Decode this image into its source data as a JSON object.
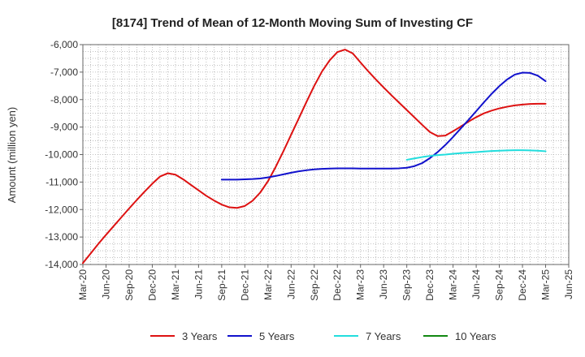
{
  "chart_data": {
    "type": "line",
    "title": "[8174]  Trend of Mean of 12-Month Moving Sum of Investing CF",
    "xlabel": "",
    "ylabel": "Amount (million yen)",
    "ylim": [
      -14000,
      -6000
    ],
    "yticks": [
      -6000,
      -7000,
      -8000,
      -9000,
      -10000,
      -11000,
      -12000,
      -13000,
      -14000
    ],
    "ytick_labels": [
      "-6,000",
      "-7,000",
      "-8,000",
      "-9,000",
      "-10,000",
      "-11,000",
      "-12,000",
      "-13,000",
      "-14,000"
    ],
    "xticks": [
      "Mar-20",
      "Jun-20",
      "Sep-20",
      "Dec-20",
      "Mar-21",
      "Jun-21",
      "Sep-21",
      "Dec-21",
      "Mar-22",
      "Jun-22",
      "Sep-22",
      "Dec-22",
      "Mar-23",
      "Jun-23",
      "Sep-23",
      "Dec-23",
      "Mar-24",
      "Jun-24",
      "Sep-24",
      "Dec-24",
      "Mar-25",
      "Jun-25"
    ],
    "grid": true,
    "legend_position": "bottom",
    "series": [
      {
        "name": "3 Years",
        "color": "#dd1111",
        "points": [
          [
            "2020-03",
            -13950
          ],
          [
            "2020-04",
            -13600
          ],
          [
            "2020-05",
            -13250
          ],
          [
            "2020-06",
            -12920
          ],
          [
            "2020-07",
            -12600
          ],
          [
            "2020-08",
            -12280
          ],
          [
            "2020-09",
            -11960
          ],
          [
            "2020-10",
            -11650
          ],
          [
            "2020-11",
            -11350
          ],
          [
            "2020-12",
            -11060
          ],
          [
            "2021-01",
            -10800
          ],
          [
            "2021-02",
            -10680
          ],
          [
            "2021-03",
            -10730
          ],
          [
            "2021-04",
            -10900
          ],
          [
            "2021-05",
            -11100
          ],
          [
            "2021-06",
            -11300
          ],
          [
            "2021-07",
            -11500
          ],
          [
            "2021-08",
            -11670
          ],
          [
            "2021-09",
            -11820
          ],
          [
            "2021-10",
            -11920
          ],
          [
            "2021-11",
            -11940
          ],
          [
            "2021-12",
            -11870
          ],
          [
            "2022-01",
            -11680
          ],
          [
            "2022-02",
            -11380
          ],
          [
            "2022-03",
            -10970
          ],
          [
            "2022-04",
            -10450
          ],
          [
            "2022-05",
            -9880
          ],
          [
            "2022-06",
            -9280
          ],
          [
            "2022-07",
            -8680
          ],
          [
            "2022-08",
            -8080
          ],
          [
            "2022-09",
            -7500
          ],
          [
            "2022-10",
            -6980
          ],
          [
            "2022-11",
            -6570
          ],
          [
            "2022-12",
            -6270
          ],
          [
            "2023-01",
            -6180
          ],
          [
            "2023-02",
            -6320
          ],
          [
            "2023-03",
            -6650
          ],
          [
            "2023-04",
            -6970
          ],
          [
            "2023-05",
            -7270
          ],
          [
            "2023-06",
            -7560
          ],
          [
            "2023-07",
            -7840
          ],
          [
            "2023-08",
            -8110
          ],
          [
            "2023-09",
            -8380
          ],
          [
            "2023-10",
            -8650
          ],
          [
            "2023-11",
            -8920
          ],
          [
            "2023-12",
            -9180
          ],
          [
            "2024-01",
            -9330
          ],
          [
            "2024-02",
            -9310
          ],
          [
            "2024-03",
            -9150
          ],
          [
            "2024-04",
            -8980
          ],
          [
            "2024-05",
            -8800
          ],
          [
            "2024-06",
            -8640
          ],
          [
            "2024-07",
            -8500
          ],
          [
            "2024-08",
            -8400
          ],
          [
            "2024-09",
            -8320
          ],
          [
            "2024-10",
            -8260
          ],
          [
            "2024-11",
            -8210
          ],
          [
            "2024-12",
            -8180
          ],
          [
            "2025-01",
            -8160
          ],
          [
            "2025-02",
            -8150
          ],
          [
            "2025-03",
            -8150
          ]
        ]
      },
      {
        "name": "5 Years",
        "color": "#1111cc",
        "points": [
          [
            "2021-09",
            -10910
          ],
          [
            "2021-10",
            -10910
          ],
          [
            "2021-11",
            -10910
          ],
          [
            "2021-12",
            -10900
          ],
          [
            "2022-01",
            -10890
          ],
          [
            "2022-02",
            -10870
          ],
          [
            "2022-03",
            -10830
          ],
          [
            "2022-04",
            -10780
          ],
          [
            "2022-05",
            -10720
          ],
          [
            "2022-06",
            -10660
          ],
          [
            "2022-07",
            -10610
          ],
          [
            "2022-08",
            -10570
          ],
          [
            "2022-09",
            -10540
          ],
          [
            "2022-10",
            -10520
          ],
          [
            "2022-11",
            -10510
          ],
          [
            "2022-12",
            -10500
          ],
          [
            "2023-01",
            -10500
          ],
          [
            "2023-02",
            -10500
          ],
          [
            "2023-03",
            -10510
          ],
          [
            "2023-04",
            -10510
          ],
          [
            "2023-05",
            -10510
          ],
          [
            "2023-06",
            -10510
          ],
          [
            "2023-07",
            -10510
          ],
          [
            "2023-08",
            -10500
          ],
          [
            "2023-09",
            -10480
          ],
          [
            "2023-10",
            -10420
          ],
          [
            "2023-11",
            -10310
          ],
          [
            "2023-12",
            -10130
          ],
          [
            "2024-01",
            -9910
          ],
          [
            "2024-02",
            -9650
          ],
          [
            "2024-03",
            -9360
          ],
          [
            "2024-04",
            -9050
          ],
          [
            "2024-05",
            -8740
          ],
          [
            "2024-06",
            -8420
          ],
          [
            "2024-07",
            -8100
          ],
          [
            "2024-08",
            -7790
          ],
          [
            "2024-09",
            -7510
          ],
          [
            "2024-10",
            -7270
          ],
          [
            "2024-11",
            -7090
          ],
          [
            "2024-12",
            -7020
          ],
          [
            "2025-01",
            -7030
          ],
          [
            "2025-02",
            -7130
          ],
          [
            "2025-03",
            -7330
          ]
        ]
      },
      {
        "name": "7 Years",
        "color": "#22dddd",
        "points": [
          [
            "2023-09",
            -10190
          ],
          [
            "2023-10",
            -10140
          ],
          [
            "2023-11",
            -10090
          ],
          [
            "2023-12",
            -10050
          ],
          [
            "2024-01",
            -10020
          ],
          [
            "2024-02",
            -10000
          ],
          [
            "2024-03",
            -9970
          ],
          [
            "2024-04",
            -9950
          ],
          [
            "2024-05",
            -9930
          ],
          [
            "2024-06",
            -9910
          ],
          [
            "2024-07",
            -9890
          ],
          [
            "2024-08",
            -9870
          ],
          [
            "2024-09",
            -9860
          ],
          [
            "2024-10",
            -9850
          ],
          [
            "2024-11",
            -9840
          ],
          [
            "2024-12",
            -9840
          ],
          [
            "2025-01",
            -9850
          ],
          [
            "2025-02",
            -9860
          ],
          [
            "2025-03",
            -9880
          ]
        ]
      },
      {
        "name": "10 Years",
        "color": "#118811",
        "points": []
      }
    ]
  }
}
